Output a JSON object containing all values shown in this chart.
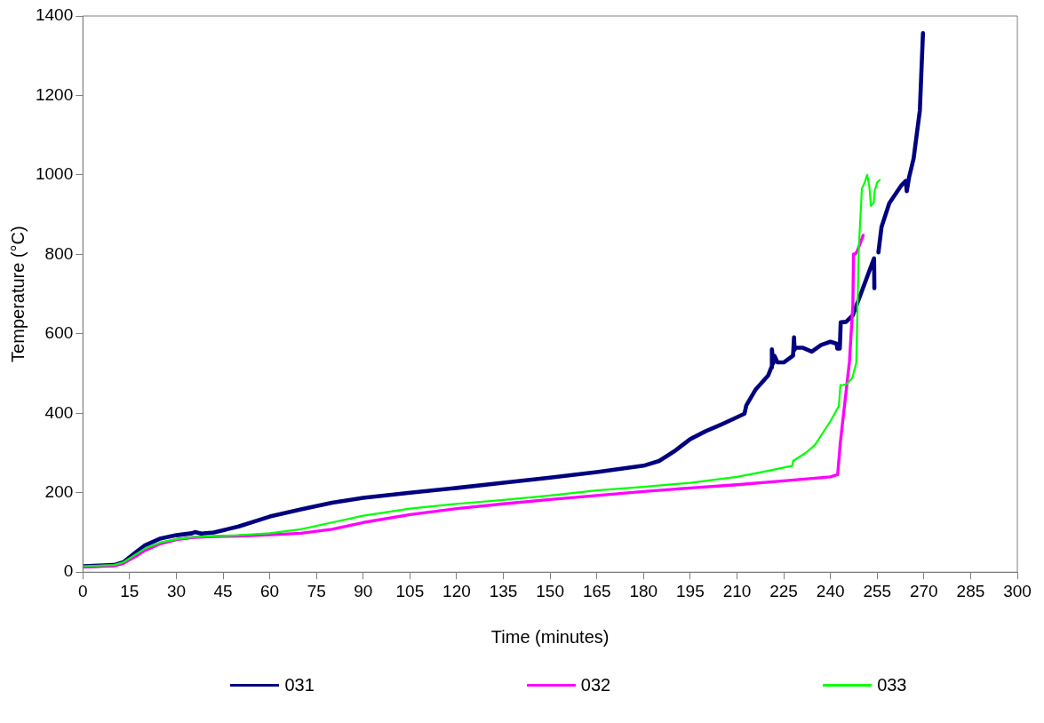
{
  "chart_data": {
    "type": "line",
    "xlabel": "Time (minutes)",
    "ylabel": "Temperature (°C)",
    "xlim": [
      0,
      300
    ],
    "xticks": [
      0,
      15,
      30,
      45,
      60,
      75,
      90,
      105,
      120,
      135,
      150,
      165,
      180,
      195,
      210,
      225,
      240,
      255,
      270,
      285,
      300
    ],
    "ylim": [
      0,
      1400
    ],
    "yticks": [
      0,
      200,
      400,
      600,
      800,
      1000,
      1200,
      1400
    ],
    "grid": false,
    "legend": "bottom",
    "marker": "none",
    "line_style": "solid",
    "series": [
      {
        "name": "031",
        "color": "#000080",
        "x": [
          0,
          10,
          13,
          17,
          20,
          25,
          30,
          35,
          36,
          38,
          42,
          50,
          60,
          70,
          80,
          90,
          105,
          120,
          135,
          150,
          165,
          180,
          185,
          190,
          195,
          200,
          205,
          210,
          212.4,
          213,
          216,
          220,
          221,
          221.2,
          221.6,
          222,
          223,
          225,
          228,
          228.3,
          228.5,
          228.8,
          231,
          234,
          237,
          240,
          242,
          242.2,
          243,
          243.3,
          245,
          247.2,
          254,
          254.1,
          254.3,
          255.4,
          256.4,
          258.9,
          262.8,
          264.2,
          264.5,
          265.3,
          266.7,
          268.7,
          269.7
        ],
        "values": [
          15,
          18,
          25,
          50,
          68,
          85,
          93,
          98,
          101,
          97,
          100,
          115,
          140,
          158,
          175,
          187,
          200,
          212,
          225,
          238,
          252,
          268,
          280,
          305,
          335,
          355,
          372,
          390,
          399,
          420,
          460,
          495,
          515,
          561,
          525,
          545,
          528,
          528,
          545,
          591,
          560,
          565,
          565,
          555,
          572,
          580,
          575,
          563,
          563,
          629,
          630,
          647,
          790,
          715,
          null,
          805,
          869,
          929,
          974,
          985,
          959,
          996,
          1041,
          1162,
          1357
        ]
      },
      {
        "name": "032",
        "color": "#ff00ff",
        "x": [
          0,
          10,
          13,
          17,
          20,
          25,
          30,
          35,
          40,
          50,
          60,
          70,
          80,
          90,
          105,
          120,
          135,
          150,
          165,
          180,
          195,
          210,
          225,
          240,
          242,
          242.3,
          243.2,
          246.1,
          247.2,
          247.4,
          248,
          248.6,
          250.5
        ],
        "values": [
          13,
          16,
          22,
          40,
          55,
          72,
          82,
          87,
          89,
          91,
          94,
          98,
          108,
          125,
          145,
          160,
          172,
          183,
          193,
          203,
          212,
          220,
          230,
          240,
          245,
          245,
          328,
          530,
          674,
          801,
          801,
          808,
          848
        ]
      },
      {
        "name": "033",
        "color": "#00ff00",
        "x": [
          0,
          10,
          13,
          17,
          20,
          25,
          30,
          35,
          40,
          50,
          60,
          70,
          80,
          90,
          105,
          120,
          135,
          150,
          165,
          180,
          195,
          210,
          220,
          227.8,
          228,
          232,
          235,
          238.4,
          240,
          242.7,
          243.2,
          243.5,
          245.3,
          247,
          248.3,
          249.1,
          250.1,
          251,
          251.8,
          252.5,
          253,
          253.9,
          254.2,
          255,
          255.8
        ],
        "values": [
          15,
          18,
          25,
          45,
          60,
          75,
          83,
          88,
          90,
          93,
          98,
          108,
          125,
          142,
          160,
          172,
          182,
          193,
          206,
          215,
          225,
          240,
          255,
          268,
          280,
          300,
          320,
          361,
          380,
          418,
          471,
          470,
          474,
          489,
          527,
          816,
          966,
          981,
          1000,
          970,
          922,
          930,
          959,
          981,
          987
        ]
      }
    ]
  }
}
